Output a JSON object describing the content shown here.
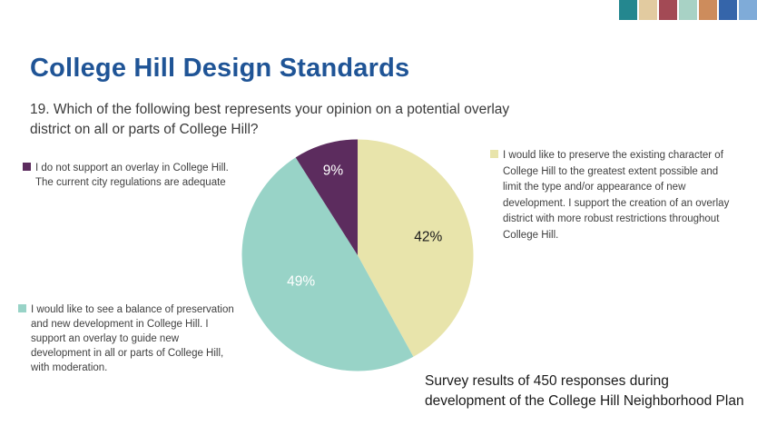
{
  "slide": {
    "title": "College Hill Design Standards",
    "question": "19. Which of the following best represents your opinion on a potential overlay district on all or parts of College Hill?",
    "caption": "Survey results of 450 responses during development of the College Hill Neighborhood Plan"
  },
  "deco_bar_colors": [
    "#24878f",
    "#e2cba0",
    "#a34a55",
    "#a8d2c5",
    "#cd8c5c",
    "#3565aa",
    "#7fabd8"
  ],
  "chart_data": {
    "type": "pie",
    "title": "",
    "start_angle_deg": 0,
    "direction": "clockwise",
    "total_responses_note": "450 responses",
    "slices": [
      {
        "name": "preserve-existing",
        "legend": "I would like to preserve the existing character of College Hill to the greatest extent possible and limit the type and/or appearance of new development. I support the creation of an overlay district with more robust restrictions throughout College Hill.",
        "value": 42,
        "data_label": "42%",
        "color": "#e8e4ab",
        "label_color": "#1a1a1a",
        "label_r": 0.63
      },
      {
        "name": "balance-preservation-development",
        "legend": "I would like to see a balance of preservation and new development in College Hill. I support an overlay to guide new development in all or parts of College Hill, with moderation.",
        "value": 49,
        "data_label": "49%",
        "color": "#98d3c7",
        "label_color": "#ffffff",
        "label_r": 0.54,
        "label_angle_deg": 245
      },
      {
        "name": "no-overlay",
        "legend": "I do not support an overlay in College Hill. The current city regulations are adequate",
        "value": 9,
        "data_label": "9%",
        "color": "#5c2c5e",
        "label_color": "#ffffff",
        "label_r": 0.76
      }
    ],
    "legend_position": "left-and-right, color-swatch squares"
  },
  "colors": {
    "title": "#1f5496",
    "question_text": "#3a3a3a",
    "legend_text": "#404040",
    "caption_text": "#1a1a1a",
    "background": "#ffffff"
  }
}
